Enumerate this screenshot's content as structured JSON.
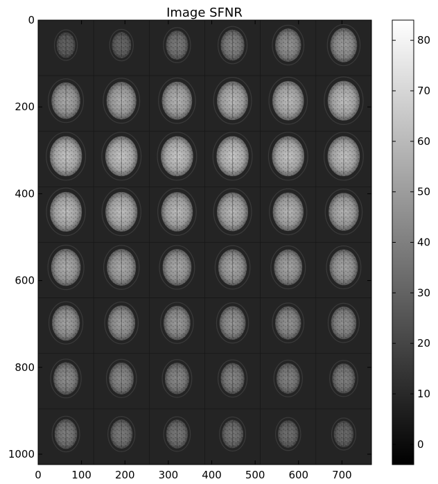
{
  "chart_data": {
    "type": "heatmap",
    "title": "Image SFNR",
    "xlabel": "",
    "ylabel": "",
    "image_extent": {
      "x": [
        0,
        768
      ],
      "y": [
        0,
        1024
      ]
    },
    "x_ticks": [
      0,
      100,
      200,
      300,
      400,
      500,
      600,
      700
    ],
    "y_ticks": [
      0,
      200,
      400,
      600,
      800,
      1000
    ],
    "grid": false,
    "mosaic": {
      "rows": 8,
      "cols": 6,
      "slice_note": "axial brain slices arranged in a 6x8 mosaic, intensity increases towards mid-brain slices",
      "relative_intensity": [
        [
          0.05,
          0.08,
          0.22,
          0.3,
          0.4,
          0.45
        ],
        [
          0.55,
          0.6,
          0.62,
          0.66,
          0.68,
          0.7
        ],
        [
          0.74,
          0.75,
          0.76,
          0.76,
          0.74,
          0.72
        ],
        [
          0.7,
          0.7,
          0.68,
          0.66,
          0.64,
          0.62
        ],
        [
          0.58,
          0.56,
          0.55,
          0.54,
          0.52,
          0.52
        ],
        [
          0.5,
          0.48,
          0.45,
          0.42,
          0.4,
          0.38
        ],
        [
          0.36,
          0.34,
          0.32,
          0.3,
          0.28,
          0.26
        ],
        [
          0.24,
          0.22,
          0.2,
          0.18,
          0.14,
          0.1
        ]
      ]
    },
    "colorbar": {
      "colormap": "gray",
      "range": [
        -4,
        84
      ],
      "ticks": [
        0,
        10,
        20,
        30,
        40,
        50,
        60,
        70,
        80
      ]
    },
    "colors": {
      "background_panel": "#1e1e1e",
      "tile_background": "#242424",
      "axis": "#000000"
    }
  }
}
